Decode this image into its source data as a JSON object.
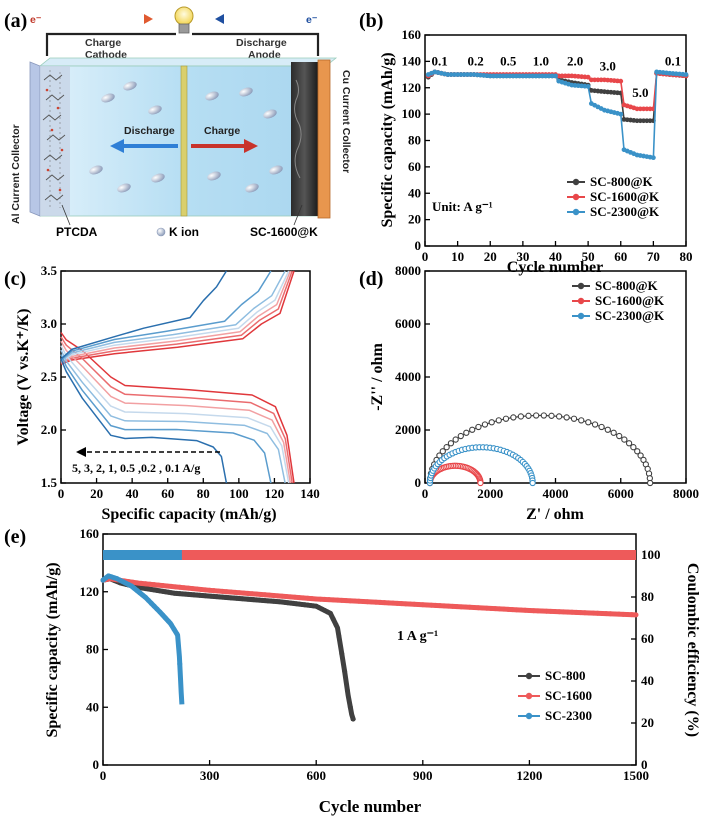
{
  "panels": {
    "a": "(a)",
    "b": "(b)",
    "c": "(c)",
    "d": "(d)",
    "e": "(e)"
  },
  "schematic": {
    "electron_left": "e⁻",
    "electron_right": "e⁻",
    "charge_label": "Charge",
    "cathode_label": "Cathode",
    "discharge_label": "Discharge",
    "anode_label": "Anode",
    "left_collector": "Al Current Collector",
    "right_collector": "Cu Current Collector",
    "arrow_discharge": "Discharge",
    "arrow_charge": "Charge",
    "ptcda": "PTCDA",
    "k_ion": "K ion",
    "sc": "SC-1600@K",
    "colors": {
      "electrolyte": "#bfe3f5",
      "cu": "#e8964e",
      "al": "#b7c6e6",
      "discharge": "#2f7fd6",
      "charge": "#c8332b"
    }
  },
  "chart_data": [
    {
      "id": "b",
      "type": "line",
      "title": "",
      "xlabel": "Cycle number",
      "ylabel": "Specific capacity (mAh/g)",
      "xlim": [
        0,
        80
      ],
      "ylim": [
        0,
        160
      ],
      "xticks": [
        0,
        10,
        20,
        30,
        40,
        50,
        60,
        70,
        80
      ],
      "yticks": [
        0,
        20,
        40,
        60,
        80,
        100,
        120,
        140,
        160
      ],
      "rate_labels": [
        "0.1",
        "0.2",
        "0.5",
        "1.0",
        "2.0",
        "3.0",
        "5.0",
        "0.1"
      ],
      "unit_note": "Unit: A g⁻¹",
      "series": [
        {
          "name": "SC-800@K",
          "color": "#404040",
          "x": [
            1,
            3,
            5,
            7,
            10,
            15,
            20,
            25,
            30,
            35,
            40,
            41,
            45,
            50,
            51,
            55,
            60,
            61,
            65,
            70,
            71,
            75,
            80
          ],
          "y": [
            128,
            132,
            131,
            130,
            130,
            130,
            129,
            129,
            129,
            129,
            129,
            126,
            124,
            122,
            118,
            117,
            116,
            96,
            95,
            95,
            131,
            130,
            129
          ]
        },
        {
          "name": "SC-1600@K",
          "color": "#e8474a",
          "x": [
            1,
            3,
            5,
            7,
            10,
            15,
            20,
            25,
            30,
            35,
            40,
            41,
            45,
            50,
            51,
            55,
            60,
            61,
            65,
            70,
            71,
            75,
            80
          ],
          "y": [
            129,
            132,
            131,
            130,
            130,
            130,
            130,
            130,
            130,
            130,
            130,
            129,
            129,
            128,
            126,
            126,
            125,
            107,
            104,
            104,
            131,
            130,
            129
          ]
        },
        {
          "name": "SC-2300@K",
          "color": "#3a92c8",
          "x": [
            1,
            3,
            5,
            7,
            10,
            15,
            20,
            25,
            30,
            35,
            40,
            41,
            45,
            50,
            51,
            55,
            60,
            61,
            65,
            70,
            71,
            75,
            80
          ],
          "y": [
            130,
            132,
            131,
            130,
            130,
            130,
            129,
            129,
            129,
            129,
            129,
            125,
            122,
            121,
            108,
            103,
            100,
            73,
            69,
            67,
            132,
            131,
            130
          ]
        }
      ]
    },
    {
      "id": "c",
      "type": "line",
      "xlabel": "Specific capacity (mAh/g)",
      "ylabel": "Voltage (V vs.K⁺/K)",
      "xlim": [
        0,
        140
      ],
      "ylim": [
        1.5,
        3.5
      ],
      "xticks": [
        0,
        20,
        40,
        60,
        80,
        100,
        120,
        140
      ],
      "yticks": [
        1.5,
        2.0,
        2.5,
        3.0,
        3.5
      ],
      "annotation": "5, 3, 2, 1, 0.5 ,0.2 , 0.1 A/g",
      "series": [
        {
          "name": "0.1 A/g",
          "color": "#e0373b",
          "cap": 131
        },
        {
          "name": "0.2 A/g",
          "color": "#ea6b6e",
          "cap": 130
        },
        {
          "name": "0.5 A/g",
          "color": "#f2a0a2",
          "cap": 129
        },
        {
          "name": "1 A/g",
          "color": "#c5d9ec",
          "cap": 128
        },
        {
          "name": "2 A/g",
          "color": "#8fbde0",
          "cap": 126
        },
        {
          "name": "3 A/g",
          "color": "#5a9ccd",
          "cap": 118
        },
        {
          "name": "5 A/g",
          "color": "#2a6fae",
          "cap": 93
        }
      ]
    },
    {
      "id": "d",
      "type": "scatter",
      "xlabel": "Z' / ohm",
      "ylabel": "-Z'' / ohm",
      "xlim": [
        0,
        8000
      ],
      "ylim": [
        0,
        8000
      ],
      "xticks": [
        0,
        2000,
        4000,
        6000,
        8000
      ],
      "yticks": [
        0,
        2000,
        4000,
        6000,
        8000
      ],
      "series": [
        {
          "name": "SC-800@K",
          "color": "#404040",
          "r0": 150,
          "r1": 6900,
          "peak": 2550
        },
        {
          "name": "SC-1600@K",
          "color": "#e8474a",
          "r0": 150,
          "r1": 1700,
          "peak": 650
        },
        {
          "name": "SC-2300@K",
          "color": "#3a92c8",
          "r0": 150,
          "r1": 3300,
          "peak": 1350
        }
      ]
    },
    {
      "id": "e",
      "type": "line",
      "xlabel": "Cycle number",
      "ylabel": "Specific capacity (mAh/g)",
      "y2label": "Coulombic efficiency (%)",
      "xlim": [
        0,
        1500
      ],
      "ylim": [
        0,
        160
      ],
      "y2lim": [
        0,
        110
      ],
      "xticks": [
        0,
        300,
        600,
        900,
        1200,
        1500
      ],
      "yticks": [
        0,
        40,
        80,
        120,
        160
      ],
      "y2ticks": [
        0,
        20,
        40,
        60,
        80,
        100
      ],
      "annotation": "1 A g⁻¹",
      "series": [
        {
          "name": "SC-800",
          "color": "#404040",
          "x": [
            0,
            20,
            50,
            100,
            200,
            300,
            400,
            500,
            600,
            640,
            660,
            670,
            680,
            690,
            700,
            705
          ],
          "y": [
            128,
            129,
            126,
            123,
            119,
            117,
            115,
            113,
            110,
            105,
            95,
            80,
            65,
            48,
            35,
            31
          ]
        },
        {
          "name": "SC-1600",
          "color": "#ee5a5a",
          "x": [
            0,
            20,
            100,
            300,
            600,
            900,
            1200,
            1500
          ],
          "y": [
            128,
            129,
            126,
            121,
            115,
            111,
            107,
            104
          ]
        },
        {
          "name": "SC-2300",
          "color": "#3a92c8",
          "x": [
            0,
            15,
            40,
            80,
            120,
            160,
            190,
            210,
            215,
            218,
            220,
            222
          ],
          "y": [
            128,
            131,
            129,
            124,
            116,
            106,
            98,
            90,
            75,
            60,
            50,
            42
          ]
        }
      ],
      "efficiency": [
        {
          "name": "SC-1600 CE",
          "color": "#ee5a5a",
          "x_end": 1500,
          "value": 100
        },
        {
          "name": "SC-2300 CE",
          "color": "#3a92c8",
          "x_end": 222,
          "value": 100
        }
      ]
    }
  ]
}
